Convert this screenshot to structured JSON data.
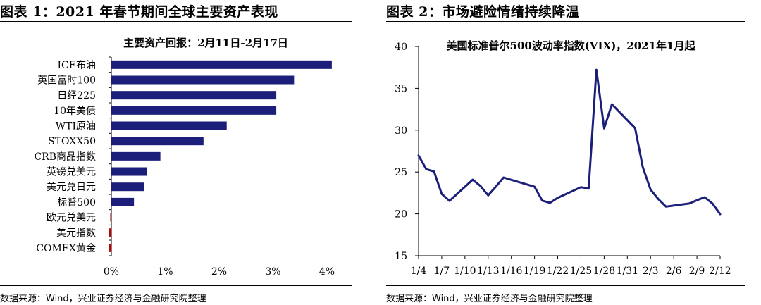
{
  "left": {
    "figure_title": "图表 1：2021 年春节期间全球主要资产表现",
    "source": "数据来源：Wind，兴业证券经济与金融研究院整理"
  },
  "right": {
    "figure_title": "图表 2：市场避险情绪持续降温",
    "source": "数据来源：Wind，兴业证券经济与金融研究院整理"
  },
  "colors": {
    "bar": "#1c1f7a",
    "negative_bar": "#c00000",
    "line": "#1c1f7a"
  },
  "chart_data": [
    {
      "type": "bar",
      "orientation": "horizontal",
      "title": "主要资产回报：2月11日-2月17日",
      "categories": [
        "ICE布油",
        "英国富时100",
        "日经225",
        "10年美债",
        "WTI原油",
        "STOXX50",
        "CRB商品指数",
        "英镑兑美元",
        "美元兑日元",
        "标普500",
        "欧元兑美元",
        "美元指数",
        "COMEX黄金"
      ],
      "values": [
        4.09,
        3.39,
        3.06,
        3.06,
        2.14,
        1.71,
        0.91,
        0.66,
        0.61,
        0.42,
        -0.02,
        -0.05,
        -0.05
      ],
      "unit": "%",
      "xlim": [
        0,
        4
      ],
      "xticks": [
        "0%",
        "1%",
        "2%",
        "3%",
        "4%"
      ],
      "grid": false,
      "legend": "none"
    },
    {
      "type": "line",
      "title": "美国标准普尔500波动率指数(VIX)，2021年1月起",
      "ylim": [
        15,
        40
      ],
      "yticks": [
        "15",
        "20",
        "25",
        "30",
        "35",
        "40"
      ],
      "xticks": [
        "1/4",
        "1/7",
        "1/10",
        "1/13",
        "1/16",
        "1/19",
        "1/22",
        "1/25",
        "1/28",
        "1/31",
        "2/3",
        "2/6",
        "2/9",
        "2/12"
      ],
      "xrange": [
        "1/4",
        "2/12"
      ],
      "grid": false,
      "legend": "none",
      "series": [
        {
          "x": [
            "1/4",
            "1/5",
            "1/6",
            "1/7",
            "1/8",
            "1/11",
            "1/12",
            "1/13",
            "1/14",
            "1/15",
            "1/19",
            "1/20",
            "1/21",
            "1/22",
            "1/25",
            "1/26",
            "1/27",
            "1/28",
            "1/29",
            "2/1",
            "2/2",
            "2/3",
            "2/4",
            "2/5",
            "2/8",
            "2/9",
            "2/10",
            "2/11",
            "2/12"
          ],
          "values": [
            26.97,
            25.34,
            25.07,
            22.37,
            21.56,
            24.08,
            23.33,
            22.21,
            23.25,
            24.34,
            23.24,
            21.58,
            21.32,
            21.91,
            23.19,
            23.02,
            37.21,
            30.21,
            33.09,
            30.24,
            25.56,
            22.91,
            21.77,
            20.87,
            21.24,
            21.63,
            21.99,
            21.25,
            19.97
          ]
        }
      ]
    }
  ]
}
